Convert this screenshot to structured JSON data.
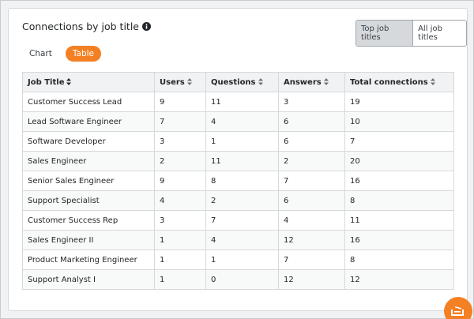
{
  "header": {
    "title": "Connections by job title"
  },
  "toggle": [
    "Top job titles",
    "All job titles"
  ],
  "tabs": [
    "Chart",
    "Table"
  ],
  "table": {
    "columns": [
      "Job Title",
      "Users",
      "Questions",
      "Answers",
      "Total connections"
    ],
    "rows": [
      [
        "Customer Success Lead",
        9,
        11,
        3,
        19
      ],
      [
        "Lead Software Engineer",
        7,
        4,
        6,
        10
      ],
      [
        "Software Developer",
        3,
        1,
        6,
        7
      ],
      [
        "Sales Engineer",
        2,
        11,
        2,
        20
      ],
      [
        "Senior Sales Engineer",
        9,
        8,
        7,
        16
      ],
      [
        "Support Specialist",
        4,
        2,
        6,
        8
      ],
      [
        "Customer Success Rep",
        3,
        7,
        4,
        11
      ],
      [
        "Sales Engineer II",
        1,
        4,
        12,
        16
      ],
      [
        "Product Marketing Engineer",
        1,
        1,
        7,
        8
      ],
      [
        "Support Analyst I",
        1,
        0,
        12,
        12
      ]
    ]
  }
}
